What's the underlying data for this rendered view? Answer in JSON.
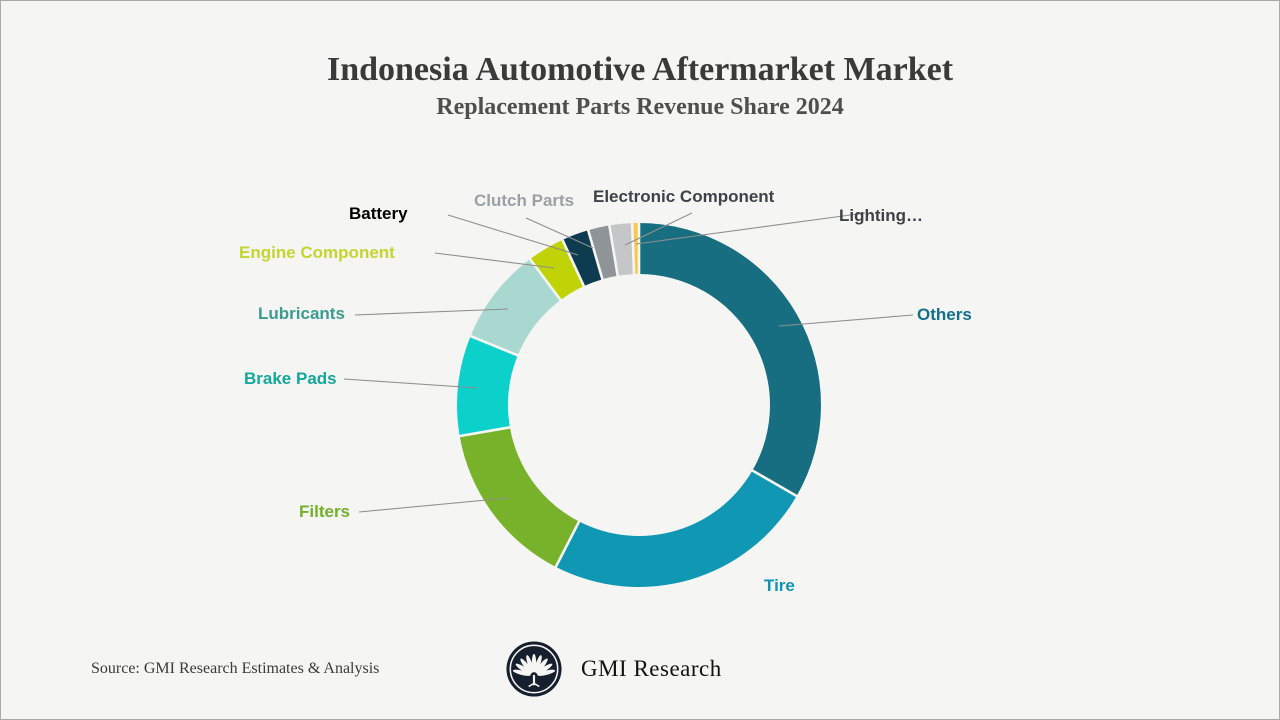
{
  "title": "Indonesia Automotive Aftermarket Market",
  "subtitle": "Replacement Parts Revenue Share 2024",
  "source": "Source: GMI Research Estimates & Analysis",
  "brand": {
    "name": "GMI Research",
    "logo_icon": "gmi-palm-logo"
  },
  "colors": {
    "background": "#f5f5f4",
    "frame_border": "#a9a9a9",
    "title_text": "#3a3a3a",
    "subtitle_text": "#4f4f4f",
    "leader_line": "#8f8f8f",
    "logo_fill": "#161f2d"
  },
  "chart_data": {
    "type": "pie",
    "donut": true,
    "title": "Indonesia Automotive Aftermarket Market",
    "subtitle": "Replacement Parts Revenue Share 2024",
    "units": "revenue share %",
    "start_angle_deg": 0,
    "direction": "clockwise",
    "legend_position": "callout-labels",
    "segments": [
      {
        "label": "Others",
        "share_pct": 33.3,
        "color": "#166e80",
        "label_color": "#14708a"
      },
      {
        "label": "Tire",
        "share_pct": 24.2,
        "color": "#0f97b4",
        "label_color": "#0f93b2"
      },
      {
        "label": "Filters",
        "share_pct": 14.7,
        "color": "#78b22b",
        "label_color": "#74b02a"
      },
      {
        "label": "Brake Pads",
        "share_pct": 8.9,
        "color": "#0cd1ca",
        "label_color": "#14a79b"
      },
      {
        "label": "Lubricants",
        "share_pct": 8.6,
        "color": "#a9d8d1",
        "label_color": "#3a9c8f"
      },
      {
        "label": "Engine Component",
        "share_pct": 3.3,
        "color": "#c0d306",
        "label_color": "#c4d52e"
      },
      {
        "label": "Battery",
        "share_pct": 2.4,
        "color": "#0d3c50",
        "label_color": "#000000"
      },
      {
        "label": "Clutch Parts",
        "share_pct": 1.9,
        "color": "#8f9498",
        "label_color": "#9aa0a6"
      },
      {
        "label": "Electronic Component",
        "share_pct": 2.0,
        "color": "#c5c6c8",
        "label_color": "#3e4247"
      },
      {
        "label": "Lighting…",
        "share_pct": 0.6,
        "color": "#f6c84f",
        "label_color": "#3e4247"
      }
    ]
  }
}
